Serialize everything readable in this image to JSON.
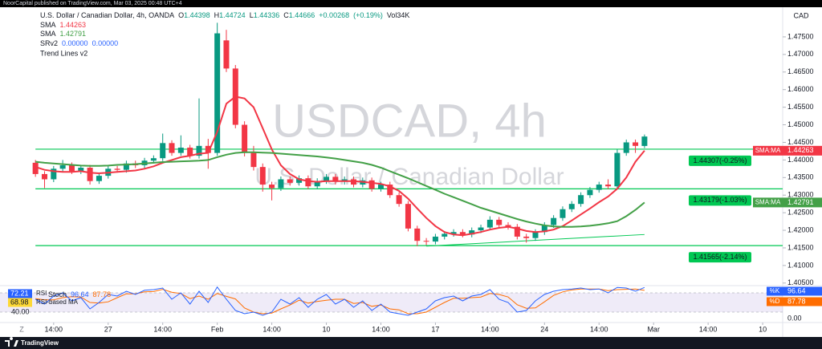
{
  "header": {
    "text": "NoorCapital published on TradingView.com, Mar 03, 2025 00:48 UTC+4"
  },
  "chart_data": {
    "type": "candlestick",
    "watermark": {
      "title": "USDCAD, 4h",
      "subtitle": "U.S. Dollar / Canadian Dollar"
    },
    "legend": {
      "symbol": "U.S. Dollar / Canadian Dollar, 4h, OANDA",
      "ohlc": [
        {
          "key": "O",
          "value": 1.44398
        },
        {
          "key": "H",
          "value": 1.44724
        },
        {
          "key": "L",
          "value": 1.44336
        },
        {
          "key": "C",
          "value": 1.44666
        }
      ],
      "change": {
        "value": 0.00268,
        "label": "+0.00268"
      },
      "change_pct": {
        "value": 0.19,
        "label": "(+0.19%)"
      },
      "volume": {
        "value": 34000,
        "label": "Vol34K"
      },
      "srv2": {
        "name": "SRv2",
        "values": [
          {
            "value": 0,
            "label": "0.00000"
          },
          {
            "value": 0,
            "label": "0.00000"
          }
        ]
      },
      "trend_lines": "Trend Lines v2"
    },
    "currency": "CAD",
    "colors": {
      "up": "#089981",
      "down": "#f23645"
    },
    "open": [
      1.4392,
      1.436,
      1.4345,
      1.4375,
      1.4385,
      1.4368,
      1.4378,
      1.434,
      1.4355,
      1.4375,
      1.4372,
      1.439,
      1.4385,
      1.4398,
      1.4405,
      1.4448,
      1.442,
      1.4435,
      1.4412,
      1.444,
      1.442,
      1.474,
      1.466,
      1.45,
      1.442,
      1.438,
      1.433,
      1.432,
      1.4345,
      1.4335,
      1.4348,
      1.4325,
      1.434,
      1.4352,
      1.4338,
      1.4345,
      1.433,
      1.4342,
      1.4318,
      1.433,
      1.43,
      1.4275,
      1.4205,
      1.417,
      1.4168,
      1.4182,
      1.419,
      1.4195,
      1.4188,
      1.42,
      1.4208,
      1.423,
      1.4215,
      1.421,
      1.4182,
      1.4178,
      1.4195,
      1.4215,
      1.4235,
      1.426,
      1.4275,
      1.43,
      1.4315,
      1.433,
      1.4325,
      1.442,
      1.445,
      1.44398
    ],
    "high": [
      1.44,
      1.4368,
      1.4383,
      1.44,
      1.4393,
      1.4386,
      1.4386,
      1.4363,
      1.4383,
      1.4383,
      1.4398,
      1.4398,
      1.4406,
      1.4413,
      1.4475,
      1.4456,
      1.447,
      1.4443,
      1.4575,
      1.446,
      1.479,
      1.477,
      1.467,
      1.451,
      1.444,
      1.439,
      1.4338,
      1.4353,
      1.4353,
      1.4356,
      1.4356,
      1.4348,
      1.436,
      1.436,
      1.4353,
      1.4353,
      1.435,
      1.435,
      1.4338,
      1.4338,
      1.4308,
      1.4283,
      1.4213,
      1.4178,
      1.419,
      1.4198,
      1.4203,
      1.4203,
      1.4208,
      1.4216,
      1.424,
      1.4238,
      1.4223,
      1.4218,
      1.419,
      1.4203,
      1.4223,
      1.4243,
      1.4268,
      1.4283,
      1.4308,
      1.4323,
      1.4338,
      1.4345,
      1.443,
      1.4458,
      1.4458,
      1.44724
    ],
    "low": [
      1.4352,
      1.432,
      1.4337,
      1.4367,
      1.436,
      1.436,
      1.433,
      1.4332,
      1.4347,
      1.4364,
      1.4364,
      1.4377,
      1.4377,
      1.439,
      1.4397,
      1.4412,
      1.4412,
      1.4404,
      1.4404,
      1.4375,
      1.4412,
      1.465,
      1.449,
      1.441,
      1.437,
      1.431,
      1.4285,
      1.4312,
      1.4327,
      1.4327,
      1.4317,
      1.4317,
      1.4332,
      1.433,
      1.433,
      1.4322,
      1.4322,
      1.431,
      1.431,
      1.4292,
      1.4267,
      1.4197,
      1.4155,
      1.4158,
      1.416,
      1.4174,
      1.4182,
      1.418,
      1.418,
      1.4192,
      1.42,
      1.4207,
      1.4202,
      1.4174,
      1.4165,
      1.417,
      1.4187,
      1.4207,
      1.4227,
      1.4252,
      1.4267,
      1.4292,
      1.4307,
      1.4317,
      1.4317,
      1.4412,
      1.442,
      1.44336
    ],
    "close": [
      1.436,
      1.4345,
      1.4375,
      1.4385,
      1.4368,
      1.4378,
      1.434,
      1.4355,
      1.4375,
      1.4372,
      1.439,
      1.4385,
      1.4398,
      1.4405,
      1.4448,
      1.442,
      1.4435,
      1.4412,
      1.444,
      1.442,
      1.476,
      1.466,
      1.45,
      1.442,
      1.438,
      1.433,
      1.432,
      1.4345,
      1.4335,
      1.4348,
      1.4325,
      1.434,
      1.4352,
      1.4338,
      1.4345,
      1.433,
      1.4342,
      1.4318,
      1.433,
      1.43,
      1.4275,
      1.4205,
      1.417,
      1.4168,
      1.4182,
      1.419,
      1.4195,
      1.4188,
      1.42,
      1.4208,
      1.423,
      1.4215,
      1.421,
      1.4182,
      1.4178,
      1.4195,
      1.4215,
      1.4235,
      1.426,
      1.4275,
      1.43,
      1.4315,
      1.433,
      1.4325,
      1.442,
      1.445,
      1.444,
      1.44666
    ],
    "series": [
      {
        "name": "SMA",
        "tag": "SMA:MA",
        "color": "#f23645",
        "values": [
          1.438,
          1.4372,
          1.4368,
          1.4366,
          1.4366,
          1.4368,
          1.4364,
          1.4362,
          1.4364,
          1.4366,
          1.4368,
          1.437,
          1.4375,
          1.4382,
          1.4392,
          1.44,
          1.4408,
          1.4412,
          1.4418,
          1.442,
          1.448,
          1.456,
          1.458,
          1.4575,
          1.455,
          1.449,
          1.443,
          1.4385,
          1.436,
          1.4345,
          1.434,
          1.4338,
          1.434,
          1.434,
          1.434,
          1.434,
          1.4338,
          1.4335,
          1.4332,
          1.4325,
          1.4312,
          1.429,
          1.4262,
          1.4235,
          1.4212,
          1.4195,
          1.4188,
          1.4186,
          1.419,
          1.4195,
          1.4202,
          1.4207,
          1.421,
          1.4205,
          1.4198,
          1.4195,
          1.4197,
          1.4202,
          1.4212,
          1.4228,
          1.4245,
          1.4262,
          1.428,
          1.4296,
          1.4318,
          1.435,
          1.4395,
          1.44263
        ]
      },
      {
        "name": "SMA",
        "tag": "SMA:MA",
        "color": "#43a047",
        "values": [
          1.4395,
          1.4392,
          1.439,
          1.4388,
          1.4386,
          1.4384,
          1.4383,
          1.4383,
          1.4384,
          1.4386,
          1.4387,
          1.4388,
          1.439,
          1.4392,
          1.4394,
          1.4395,
          1.4396,
          1.4397,
          1.4398,
          1.44,
          1.4408,
          1.4415,
          1.442,
          1.4422,
          1.4422,
          1.4421,
          1.442,
          1.4418,
          1.4416,
          1.4414,
          1.4412,
          1.441,
          1.4407,
          1.4404,
          1.44,
          1.4396,
          1.4392,
          1.4386,
          1.4378,
          1.4368,
          1.4358,
          1.4348,
          1.4337,
          1.4326,
          1.4315,
          1.4304,
          1.4294,
          1.4284,
          1.4274,
          1.4264,
          1.4256,
          1.4248,
          1.424,
          1.4232,
          1.4225,
          1.4219,
          1.4214,
          1.4211,
          1.421,
          1.421,
          1.4211,
          1.4213,
          1.4216,
          1.422,
          1.4226,
          1.424,
          1.4258,
          1.42791
        ]
      }
    ],
    "levels_color": "#00c853",
    "levels": [
      {
        "value": 1.44307,
        "label": "1.44307(-0.25%)"
      },
      {
        "value": 1.43179,
        "label": "1.43179(-1.03%)"
      },
      {
        "value": 1.41565,
        "label": "1.41565(-2.14%)"
      }
    ],
    "trend_line": {
      "x": [
        43,
        67
      ],
      "y": [
        1.4155,
        1.4188
      ]
    },
    "xlim": [
      -3.9,
      82.2
    ],
    "xticks": [
      {
        "value": 2,
        "label": "14:00"
      },
      {
        "value": 8,
        "label": "27"
      },
      {
        "value": 14,
        "label": "14:00"
      },
      {
        "value": 20,
        "label": "Feb"
      },
      {
        "value": 26,
        "label": "14:00"
      },
      {
        "value": 32,
        "label": "10"
      },
      {
        "value": 38,
        "label": "14:00"
      },
      {
        "value": 44,
        "label": "17"
      },
      {
        "value": 50,
        "label": "14:00"
      },
      {
        "value": 56,
        "label": "24"
      },
      {
        "value": 62,
        "label": "14:00"
      },
      {
        "value": 68,
        "label": "Mar"
      },
      {
        "value": 74,
        "label": "14:00"
      },
      {
        "value": 80,
        "label": "10"
      }
    ],
    "ylim": [
      1.4045,
      1.4832
    ],
    "yticks": [
      {
        "value": 1.475,
        "label": "1.47500"
      },
      {
        "value": 1.47,
        "label": "1.47000"
      },
      {
        "value": 1.465,
        "label": "1.46500"
      },
      {
        "value": 1.46,
        "label": "1.46000"
      },
      {
        "value": 1.455,
        "label": "1.45500"
      },
      {
        "value": 1.45,
        "label": "1.45000"
      },
      {
        "value": 1.445,
        "label": "1.44500"
      },
      {
        "value": 1.44,
        "label": "1.44000"
      },
      {
        "value": 1.435,
        "label": "1.43500"
      },
      {
        "value": 1.43,
        "label": "1.43000"
      },
      {
        "value": 1.425,
        "label": "1.42500"
      },
      {
        "value": 1.42,
        "label": "1.42000"
      },
      {
        "value": 1.415,
        "label": "1.41500"
      },
      {
        "value": 1.41,
        "label": "1.41000"
      },
      {
        "value": 1.405,
        "label": "1.40500"
      }
    ],
    "grid": false,
    "oscillator": {
      "name": "Stoch",
      "ylim": [
        0,
        100
      ],
      "band": [
        20,
        80
      ],
      "yticks": [
        {
          "value": 0,
          "label": "0.00"
        }
      ],
      "left_tick": {
        "value": 40,
        "label": "40.00"
      },
      "rsi": {
        "name": "RSI",
        "value": 72.21,
        "color": "#2962ff"
      },
      "rsi_ma": {
        "name": "RSI-based MA",
        "value": 68.98,
        "color": "#fdd835"
      },
      "k": {
        "name": "%K",
        "color": "#2962ff",
        "values": [
          60,
          45,
          70,
          80,
          55,
          65,
          30,
          50,
          75,
          70,
          85,
          75,
          88,
          90,
          95,
          60,
          80,
          45,
          85,
          50,
          98,
          60,
          25,
          15,
          20,
          10,
          20,
          60,
          45,
          65,
          35,
          60,
          75,
          45,
          60,
          35,
          55,
          25,
          45,
          20,
          15,
          10,
          20,
          30,
          55,
          65,
          70,
          55,
          70,
          75,
          90,
          60,
          50,
          20,
          25,
          55,
          75,
          85,
          90,
          92,
          95,
          90,
          92,
          80,
          97,
          95,
          85,
          96.64
        ]
      },
      "d": {
        "name": "%D",
        "color": "#ff6d00",
        "values": [
          62,
          58,
          58,
          65,
          68,
          67,
          50,
          48,
          52,
          65,
          77,
          77,
          83,
          84,
          91,
          82,
          78,
          62,
          70,
          60,
          78,
          69,
          61,
          33,
          20,
          15,
          17,
          30,
          42,
          57,
          48,
          53,
          57,
          60,
          60,
          47,
          50,
          38,
          42,
          30,
          27,
          15,
          15,
          20,
          35,
          50,
          63,
          63,
          65,
          67,
          78,
          75,
          67,
          43,
          32,
          33,
          52,
          72,
          83,
          89,
          92,
          92,
          92,
          87,
          90,
          91,
          92,
          87.78
        ]
      }
    },
    "scale_button": "Z"
  },
  "footer": {
    "brand": "TradingView"
  }
}
